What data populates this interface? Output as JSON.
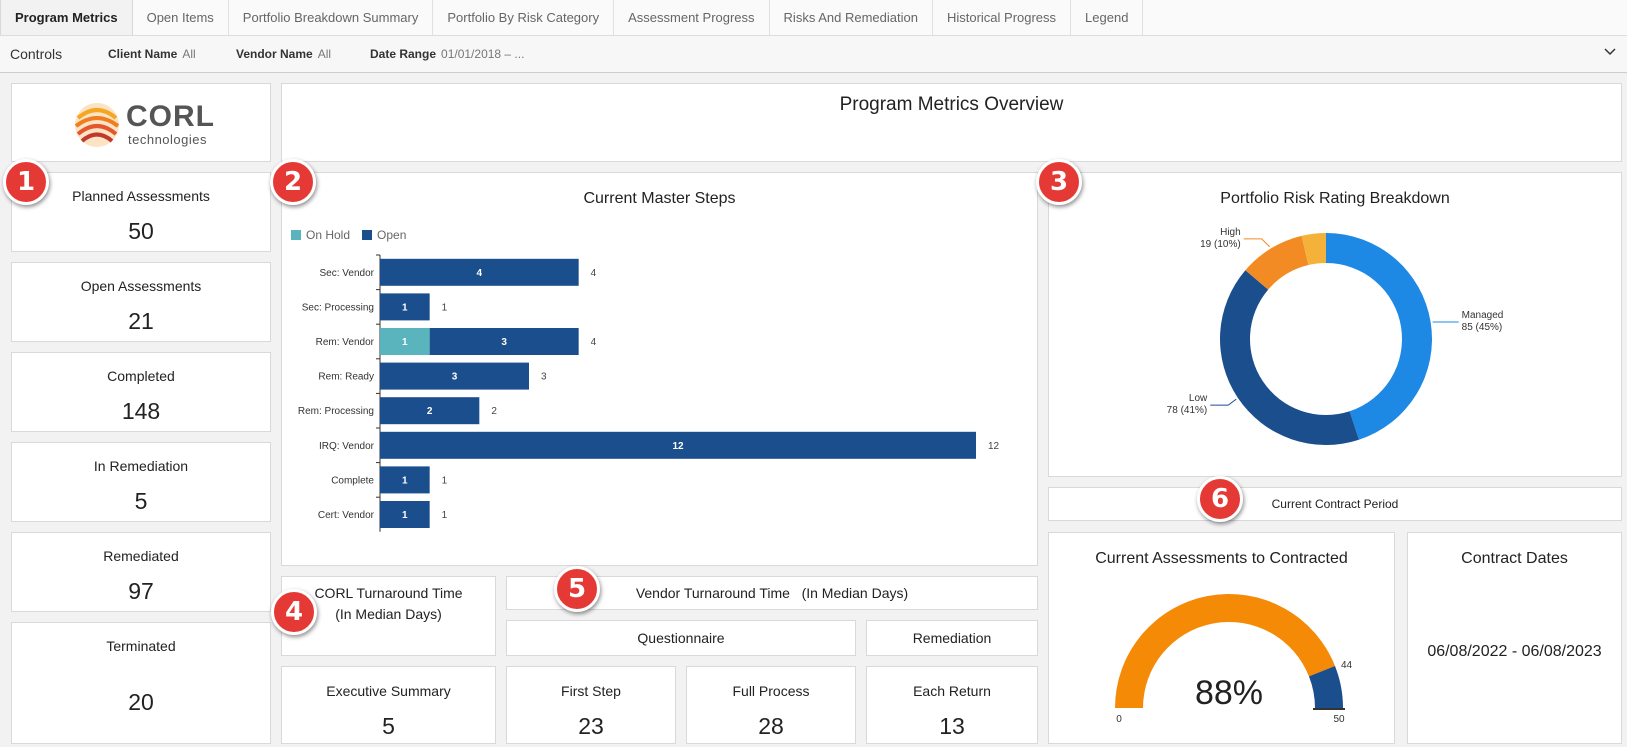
{
  "tabs": [
    {
      "label": "Program Metrics",
      "active": true
    },
    {
      "label": "Open Items"
    },
    {
      "label": "Portfolio Breakdown Summary"
    },
    {
      "label": "Portfolio By Risk Category"
    },
    {
      "label": "Assessment Progress"
    },
    {
      "label": "Risks And Remediation"
    },
    {
      "label": "Historical Progress"
    },
    {
      "label": "Legend"
    }
  ],
  "controls": {
    "title": "Controls",
    "client": {
      "label": "Client Name",
      "value": "All"
    },
    "vendor": {
      "label": "Vendor Name",
      "value": "All"
    },
    "date": {
      "label": "Date Range",
      "value": "01/01/2018 – ..."
    }
  },
  "logo": {
    "name": "CORL",
    "sub": "technologies"
  },
  "overview_title": "Program Metrics Overview",
  "kpis": [
    {
      "title": "Planned Assessments",
      "value": "50"
    },
    {
      "title": "Open Assessments",
      "value": "21"
    },
    {
      "title": "Completed",
      "value": "148"
    },
    {
      "title": "In Remediation",
      "value": "5"
    },
    {
      "title": "Remediated",
      "value": "97"
    },
    {
      "title": "Terminated",
      "value": "20"
    }
  ],
  "badges": [
    "1",
    "2",
    "3",
    "4",
    "5",
    "6"
  ],
  "master_steps": {
    "title": "Current Master Steps",
    "legend": [
      {
        "name": "On Hold",
        "color": "#5ab4bd"
      },
      {
        "name": "Open",
        "color": "#1a4e8c"
      }
    ]
  },
  "chart_data": [
    {
      "type": "bar",
      "orientation": "horizontal",
      "stacked": true,
      "title": "Current Master Steps",
      "categories": [
        "Sec: Vendor",
        "Sec: Processing",
        "Rem: Vendor",
        "Rem: Ready",
        "Rem: Processing",
        "IRQ: Vendor",
        "Complete",
        "Cert: Vendor"
      ],
      "series": [
        {
          "name": "On Hold",
          "values": [
            0,
            0,
            1,
            0,
            0,
            0,
            0,
            0
          ]
        },
        {
          "name": "Open",
          "values": [
            4,
            1,
            3,
            3,
            2,
            12,
            1,
            1
          ]
        }
      ],
      "totals": [
        4,
        1,
        4,
        3,
        2,
        12,
        1,
        1
      ],
      "legend": "top-left"
    },
    {
      "type": "pie",
      "donut": true,
      "title": "Portfolio Risk Rating Breakdown",
      "slices": [
        {
          "label": "Managed",
          "value": 85,
          "text": "85 (45%)",
          "color": "#1e88e5"
        },
        {
          "label": "Low",
          "value": 78,
          "text": "78 (41%)",
          "color": "#1a4e8c"
        },
        {
          "label": "High",
          "value": 19,
          "text": "19 (10%)",
          "color": "#f28b24"
        },
        {
          "label": "",
          "value": 7,
          "text": "",
          "color": "#f4b23a"
        }
      ]
    },
    {
      "type": "gauge",
      "title": "Current Assessments to Contracted",
      "min": 0,
      "max": 50,
      "value": 44,
      "display": "88%",
      "min_label": "0",
      "max_label": "50",
      "value_label": "44",
      "fill_color": "#f58a07",
      "rest_color": "#1a4e8c"
    }
  ],
  "contract_period": "Current Contract Period",
  "contract_dates": {
    "title": "Contract Dates",
    "value": "06/08/2022 - 06/08/2023"
  },
  "corl_turnaround": {
    "line1": "CORL Turnaround Time",
    "line2": "(In Median Days)"
  },
  "vendor_turnaround": "Vendor Turnaround Time   (In Median Days)",
  "questionnaire": "Questionnaire",
  "remediation": "Remediation",
  "metrics": [
    {
      "title": "Executive Summary",
      "value": "5"
    },
    {
      "title": "First Step",
      "value": "23"
    },
    {
      "title": "Full Process",
      "value": "28"
    },
    {
      "title": "Each Return",
      "value": "13"
    }
  ]
}
